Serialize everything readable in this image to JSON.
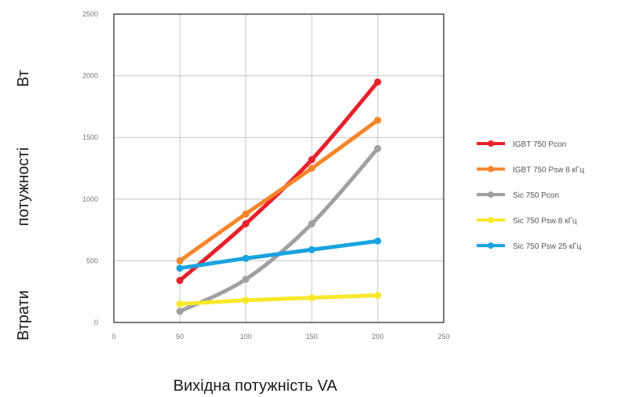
{
  "chart_data": {
    "type": "line",
    "title": "",
    "xlabel": "Вихідна потужність  VA",
    "ylabel_parts": [
      "Втрати",
      "потужності",
      "Вт"
    ],
    "xlim": [
      0,
      250
    ],
    "ylim": [
      0,
      2500
    ],
    "xticks": [
      "0",
      "50",
      "100",
      "150",
      "200",
      "250"
    ],
    "yticks": [
      "0",
      "500",
      "1000",
      "1500",
      "2000",
      "2500"
    ],
    "grid": true,
    "legend_position": "right",
    "x": [
      50,
      100,
      150,
      200
    ],
    "series": [
      {
        "name": "IGBT 750 Pcon",
        "color": "#e8212a",
        "values": [
          340,
          800,
          1320,
          1950
        ]
      },
      {
        "name": "IGBT 750 Psw 8 кГц",
        "color": "#f5862b",
        "values": [
          500,
          880,
          1250,
          1640
        ]
      },
      {
        "name": "Sic 750 Pcon",
        "color": "#a0a0a0",
        "values": [
          90,
          350,
          800,
          1410
        ]
      },
      {
        "name": "Sic 750 Psw 8 кГц",
        "color": "#f7e82b",
        "values": [
          150,
          180,
          200,
          220
        ]
      },
      {
        "name": "Sic 750 Psw 25 кГц",
        "color": "#1aa3e0",
        "values": [
          440,
          520,
          590,
          660
        ]
      }
    ]
  }
}
